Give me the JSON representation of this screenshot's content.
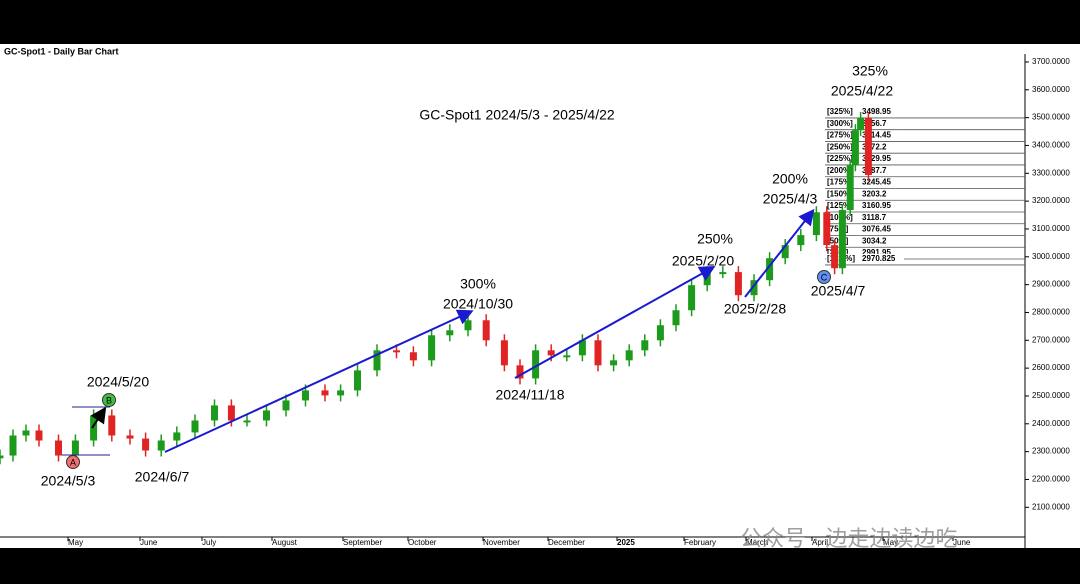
{
  "chart_data": {
    "type": "bar",
    "title": "GC-Spot1 - Daily Bar Chart",
    "subtitle": "GC-Spot1 2024/5/3 - 2025/4/22",
    "values": [
      2286,
      2358,
      2376,
      2340,
      2286,
      2340,
      2430,
      2358,
      2347,
      2304,
      2340,
      2369,
      2412,
      2466,
      2412,
      2412,
      2448,
      2484,
      2520,
      2502,
      2520,
      2592,
      2664,
      2657,
      2628,
      2718,
      2736,
      2772,
      2700,
      2610,
      2563,
      2664,
      2646,
      2646,
      2700,
      2610,
      2628,
      2664,
      2700,
      2754,
      2808,
      2898,
      2945,
      2945,
      2862,
      2916,
      2995,
      3042,
      3078,
      3160,
      3042,
      2959,
      3168,
      3329,
      3455,
      3499,
      3294
    ],
    "colors": {
      "up": "#1c9a1c",
      "down": "#e02424",
      "arrow": "#1a1ad0"
    },
    "ylim": [
      2040,
      3725
    ],
    "yticks": [
      {
        "value": 2100,
        "label": "2100.0000"
      },
      {
        "value": 2200,
        "label": "2200.0000"
      },
      {
        "value": 2300,
        "label": "2300.0000"
      },
      {
        "value": 2400,
        "label": "2400.0000"
      },
      {
        "value": 2500,
        "label": "2500.0000"
      },
      {
        "value": 2600,
        "label": "2600.0000"
      },
      {
        "value": 2700,
        "label": "2700.0000"
      },
      {
        "value": 2800,
        "label": "2800.0000"
      },
      {
        "value": 2900,
        "label": "2900.0000"
      },
      {
        "value": 3000,
        "label": "3000.0000"
      },
      {
        "value": 3100,
        "label": "3100.0000"
      },
      {
        "value": 3200,
        "label": "3200.0000"
      },
      {
        "value": 3300,
        "label": "3300.0000"
      },
      {
        "value": 3400,
        "label": "3400.0000"
      },
      {
        "value": 3500,
        "label": "3500.0000"
      },
      {
        "value": 3600,
        "label": "3600.0000"
      },
      {
        "value": 3700,
        "label": "3700.0000"
      }
    ],
    "months": [
      "May",
      "June",
      "July",
      "August",
      "September",
      "October",
      "November",
      "December",
      "2025",
      "February",
      "March",
      "April",
      "May",
      "June"
    ],
    "levels": [
      {
        "pct": "[325%]",
        "price": 3498.95
      },
      {
        "pct": "[300%]",
        "price": 3456.7
      },
      {
        "pct": "[275%]",
        "price": 3414.45
      },
      {
        "pct": "[250%]",
        "price": 3372.2
      },
      {
        "pct": "[225%]",
        "price": 3329.95
      },
      {
        "pct": "[200%]",
        "price": 3287.7
      },
      {
        "pct": "[175%]",
        "price": 3245.45
      },
      {
        "pct": "[150%]",
        "price": 3203.2
      },
      {
        "pct": "[125%]",
        "price": 3160.95
      },
      {
        "pct": "[100%]",
        "price": 3118.7
      },
      {
        "pct": "[75%]",
        "price": 3076.45
      },
      {
        "pct": "[50%]",
        "price": 3034.2
      },
      {
        "pct": "[25%]",
        "price": 2991.95
      },
      {
        "pct": "[12.5%]",
        "price": 2970.825
      }
    ],
    "annotations": [
      "325%",
      "2025/4/22",
      "200%",
      "2025/4/3",
      "250%",
      "2025/2/20",
      "300%",
      "2024/10/30",
      "2024/11/18",
      "2025/2/28",
      "2025/4/7",
      "2024/5/20",
      "2024/5/3",
      "2024/6/7"
    ],
    "points": [
      "A",
      "B",
      "C"
    ],
    "watermark": "公众号 · 边走边读边吃"
  }
}
